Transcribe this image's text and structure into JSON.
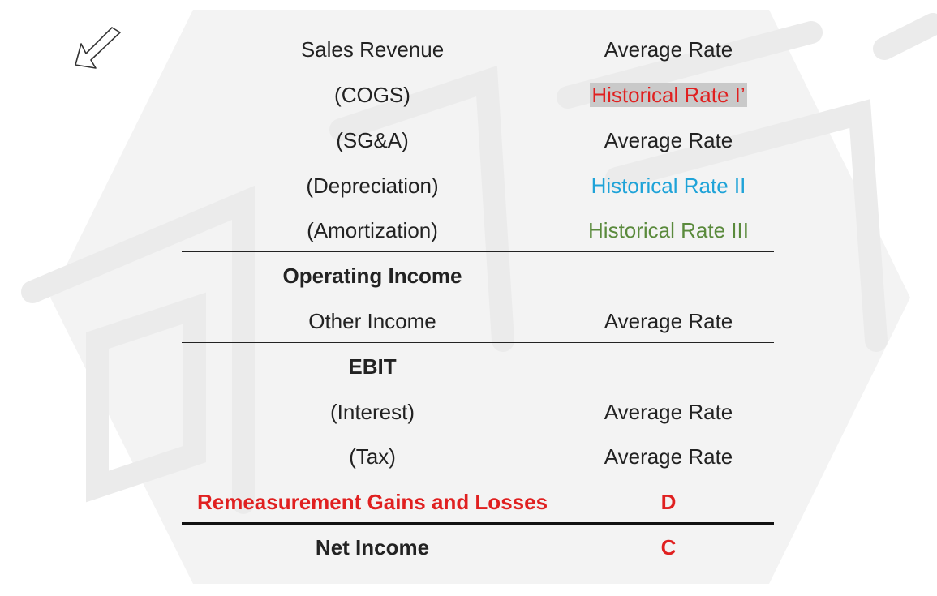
{
  "rows": [
    {
      "label": "Sales Revenue",
      "rate": "Average Rate"
    },
    {
      "label": "(COGS)",
      "rate": "Historical Rate I’"
    },
    {
      "label": "(SG&A)",
      "rate": "Average Rate"
    },
    {
      "label": "(Depreciation)",
      "rate": "Historical Rate II"
    },
    {
      "label": "(Amortization)",
      "rate": "Historical Rate III"
    },
    {
      "label": "Operating Income",
      "rate": ""
    },
    {
      "label": "Other Income",
      "rate": "Average Rate"
    },
    {
      "label": "EBIT",
      "rate": ""
    },
    {
      "label": "(Interest)",
      "rate": "Average Rate"
    },
    {
      "label": "(Tax)",
      "rate": "Average Rate"
    },
    {
      "label": "Remeasurement Gains and Losses",
      "rate": "D"
    },
    {
      "label": "Net Income",
      "rate": "C"
    }
  ],
  "colors": {
    "accent_red": "#e02020",
    "accent_blue": "#1fa3d8",
    "accent_green": "#5a8a3c",
    "highlight_gray": "#c9c9c9",
    "panel_gray": "#f3f3f3"
  },
  "icons": {
    "pointer": "hand-pointer-outline-icon"
  }
}
